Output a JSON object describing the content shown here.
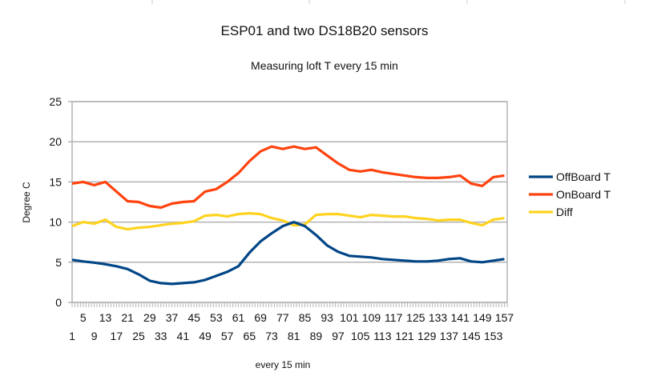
{
  "chart_data": {
    "type": "line",
    "title": "ESP01 and two DS18B20 sensors",
    "subtitle": "Measuring loft T every 15 min",
    "xlabel": "every 15 min",
    "ylabel": "Degree C",
    "ylim": [
      0,
      25
    ],
    "yticks": [
      "0",
      "5",
      "10",
      "15",
      "20",
      "25"
    ],
    "xlim": [
      1,
      158
    ],
    "xticks_top": [
      "5",
      "13",
      "21",
      "29",
      "37",
      "45",
      "53",
      "61",
      "69",
      "77",
      "85",
      "93",
      "101",
      "109",
      "117",
      "125",
      "133",
      "141",
      "149",
      "157"
    ],
    "xticks_bottom": [
      "1",
      "9",
      "17",
      "25",
      "33",
      "41",
      "49",
      "57",
      "65",
      "73",
      "81",
      "89",
      "97",
      "105",
      "113",
      "121",
      "129",
      "137",
      "145",
      "153"
    ],
    "grid": true,
    "legend_position": "right",
    "x": [
      1,
      5,
      9,
      13,
      17,
      21,
      25,
      29,
      33,
      37,
      41,
      45,
      49,
      53,
      57,
      61,
      65,
      69,
      73,
      77,
      81,
      85,
      89,
      93,
      97,
      101,
      105,
      109,
      113,
      117,
      121,
      125,
      129,
      133,
      137,
      141,
      145,
      149,
      153,
      157
    ],
    "series": [
      {
        "name": "OffBoard T",
        "color": "#004586",
        "values": [
          5.3,
          5.1,
          4.95,
          4.75,
          4.5,
          4.15,
          3.5,
          2.7,
          2.4,
          2.3,
          2.4,
          2.5,
          2.8,
          3.3,
          3.8,
          4.5,
          6.2,
          7.6,
          8.6,
          9.5,
          10.0,
          9.5,
          8.4,
          7.1,
          6.3,
          5.8,
          5.7,
          5.6,
          5.4,
          5.3,
          5.2,
          5.1,
          5.1,
          5.2,
          5.4,
          5.5,
          5.1,
          5.0,
          5.2,
          5.4
        ]
      },
      {
        "name": "OnBoard T",
        "color": "#ff420e",
        "values": [
          14.8,
          15.0,
          14.6,
          15.0,
          13.8,
          12.6,
          12.5,
          12.0,
          11.8,
          12.3,
          12.5,
          12.6,
          13.8,
          14.1,
          15.0,
          16.1,
          17.6,
          18.8,
          19.4,
          19.1,
          19.4,
          19.1,
          19.3,
          18.3,
          17.3,
          16.5,
          16.3,
          16.5,
          16.2,
          16.0,
          15.8,
          15.6,
          15.5,
          15.5,
          15.6,
          15.8,
          14.8,
          14.5,
          15.6,
          15.8
        ]
      },
      {
        "name": "Diff",
        "color": "#ffd320",
        "values": [
          9.5,
          10.0,
          9.8,
          10.3,
          9.4,
          9.1,
          9.3,
          9.4,
          9.6,
          9.8,
          9.9,
          10.1,
          10.8,
          10.9,
          10.7,
          11.0,
          11.1,
          11.0,
          10.5,
          10.2,
          9.6,
          9.7,
          10.9,
          11.0,
          11.0,
          10.8,
          10.6,
          10.9,
          10.8,
          10.7,
          10.7,
          10.5,
          10.4,
          10.2,
          10.3,
          10.3,
          9.9,
          9.6,
          10.3,
          10.5
        ]
      }
    ]
  }
}
